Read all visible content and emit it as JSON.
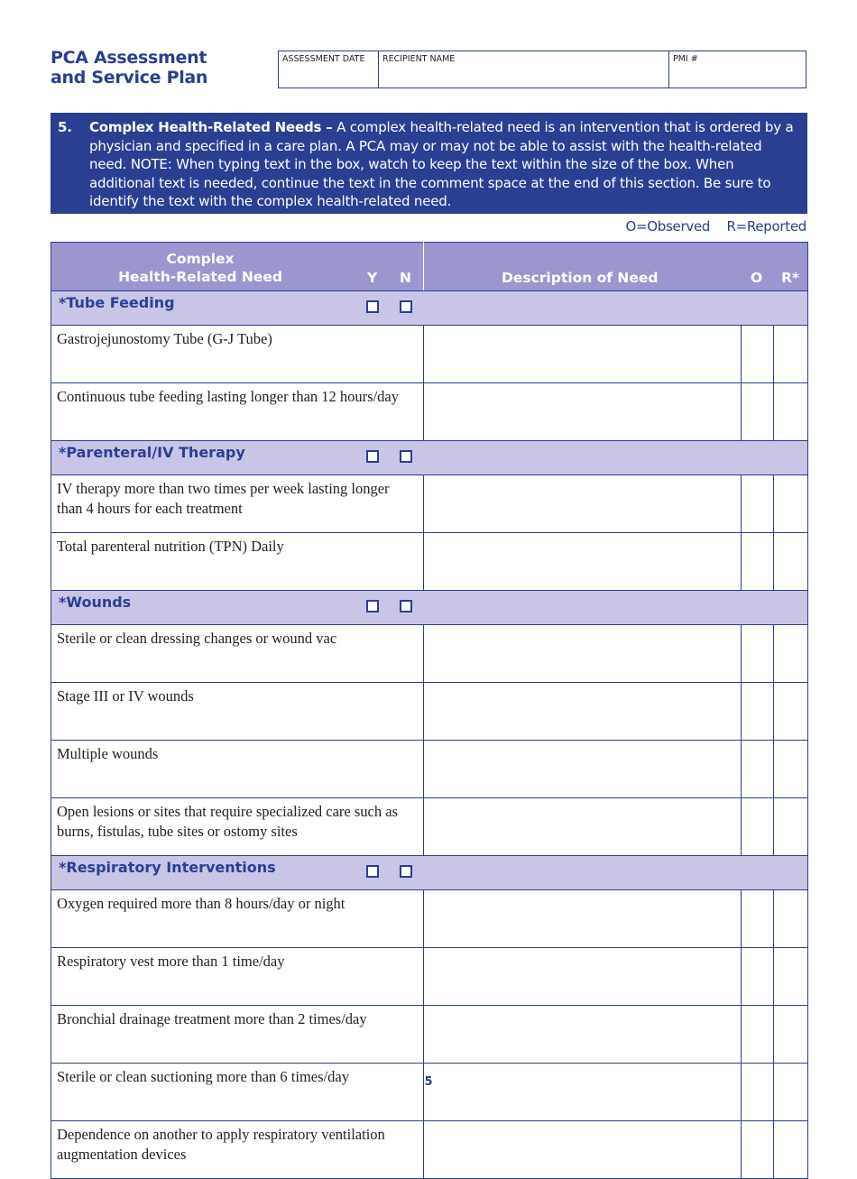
{
  "title": [
    "PCA Assessment",
    "and Service Plan"
  ],
  "header_fields": [
    "ASSESSMENT DATE",
    "RECIPIENT NAME",
    "PMI #"
  ],
  "section": {
    "number": "5.",
    "title": "Complex Health-Related Needs –",
    "text": "A complex health-related need is an intervention that is ordered by a physician and specified in a care plan. A PCA may or may not be able to assist with the health-related need. NOTE: When typing text in the box, watch to keep the text within the size of the box. When additional text is needed, continue the text in the comment space at the end of this section. Be sure to identify the text with the complex health-related need."
  },
  "legend": {
    "observed": "O=Observed",
    "reported": "R=Reported"
  },
  "columns": {
    "need_line1": "Complex",
    "need_line2": "Health-Related Need",
    "y": "Y",
    "n": "N",
    "description": "Description of Need",
    "o": "O",
    "r": "R*"
  },
  "colors": {
    "primary": "#2a3f92",
    "header": "#9b96cf",
    "subheader": "#c8c5e6"
  },
  "groups": [
    {
      "label": "*Tube Feeding",
      "items": [
        "Gastrojejunostomy Tube (G-J Tube)",
        "Continuous tube feeding lasting longer than 12 hours/day"
      ]
    },
    {
      "label": "*Parenteral/IV Therapy",
      "items": [
        "IV therapy more than two times per week lasting longer than 4 hours for each treatment",
        "Total parenteral nutrition (TPN) Daily"
      ]
    },
    {
      "label": "*Wounds",
      "items": [
        "Sterile or clean dressing changes or wound vac",
        "Stage III or IV wounds",
        "Multiple wounds",
        "Open lesions or sites that require specialized care such as burns, fistulas, tube sites or ostomy sites"
      ]
    },
    {
      "label": "*Respiratory Interventions",
      "items": [
        "Oxygen required more than 8 hours/day or night",
        "Respiratory vest more than 1 time/day",
        "Bronchial drainage treatment more than 2 times/day",
        "Sterile or clean suctioning more than 6 times/day",
        "Dependence on another to apply respiratory ventilation augmentation devices"
      ]
    }
  ],
  "page_number": "5"
}
